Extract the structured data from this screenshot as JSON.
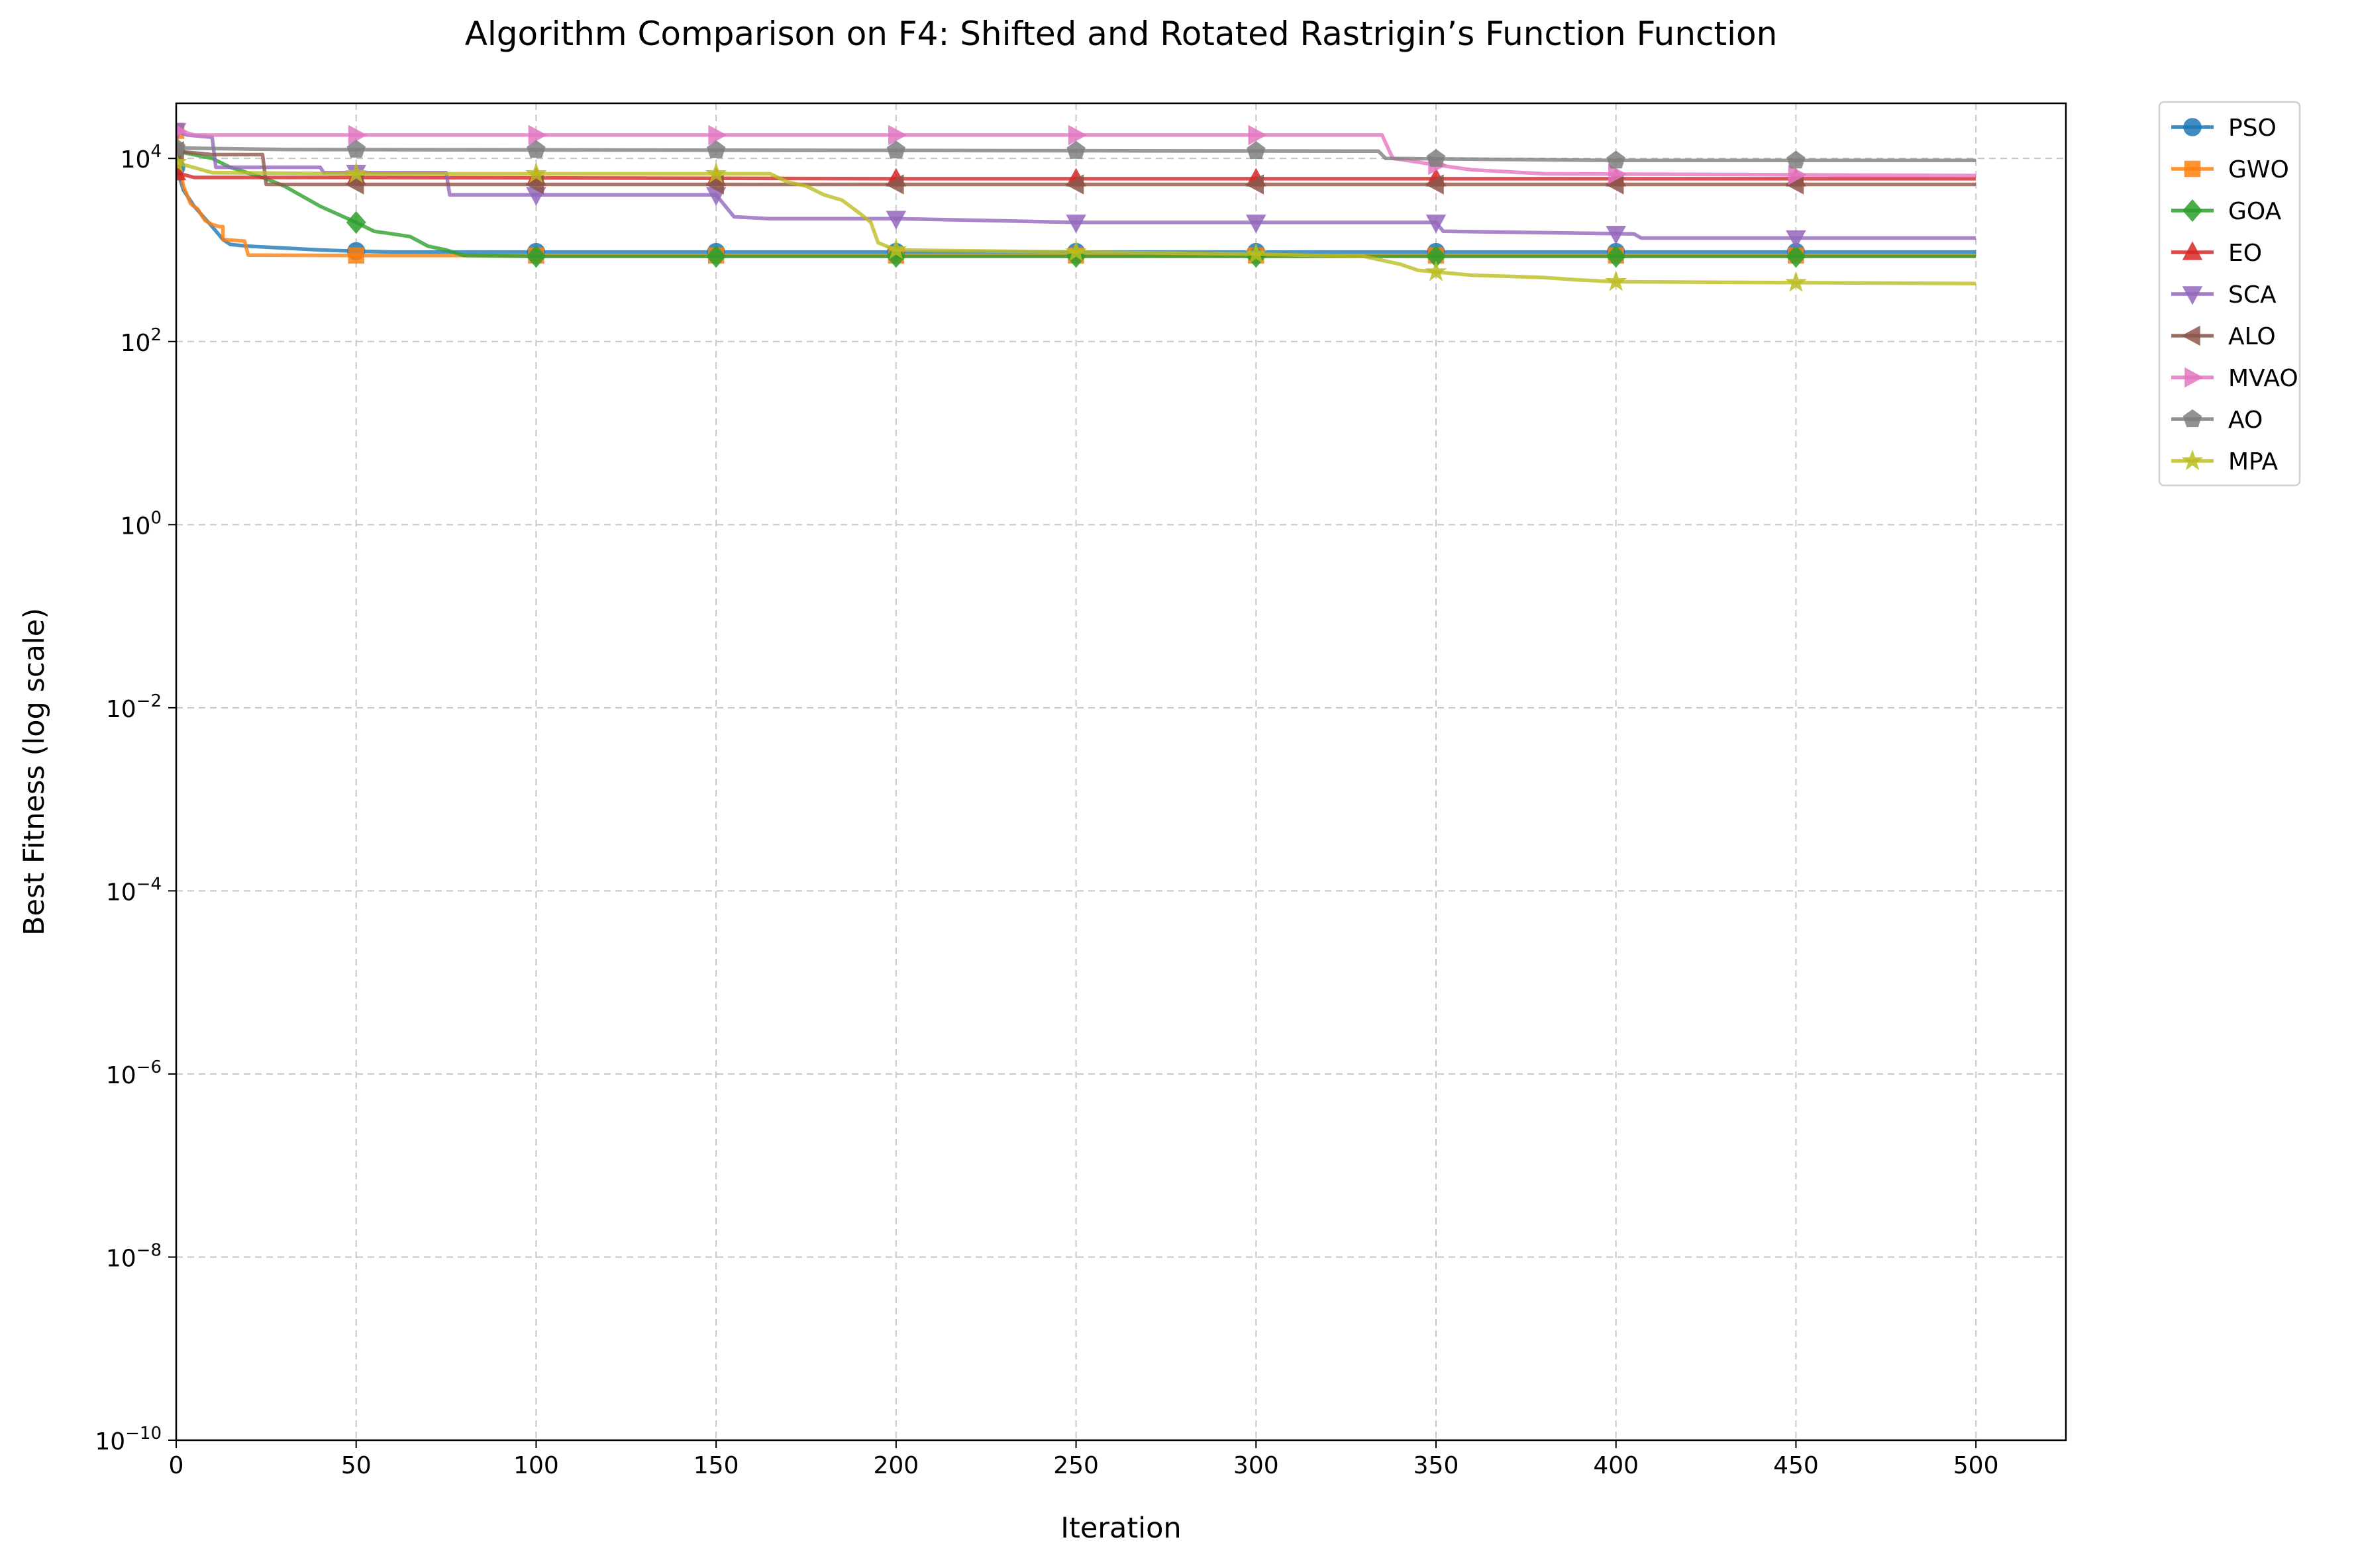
{
  "chart_data": {
    "type": "line",
    "title": "Algorithm Comparison on F4: Shifted and Rotated Rastrigin’s Function Function",
    "xlabel": "Iteration",
    "ylabel": "Best Fitness (log scale)",
    "xlim": [
      0,
      525
    ],
    "ylim": [
      1e-10,
      40000
    ],
    "yscale": "log",
    "grid": true,
    "legend_position": "outside-top-right",
    "x_ticks": [
      0,
      50,
      100,
      150,
      200,
      250,
      300,
      350,
      400,
      450,
      500
    ],
    "y_ticks": [
      {
        "base": "10",
        "exp": "−10",
        "value": 1e-10
      },
      {
        "base": "10",
        "exp": "−8",
        "value": 1e-08
      },
      {
        "base": "10",
        "exp": "−6",
        "value": 1e-06
      },
      {
        "base": "10",
        "exp": "−4",
        "value": 0.0001
      },
      {
        "base": "10",
        "exp": "−2",
        "value": 0.01
      },
      {
        "base": "10",
        "exp": "0",
        "value": 1
      },
      {
        "base": "10",
        "exp": "2",
        "value": 100
      },
      {
        "base": "10",
        "exp": "4",
        "value": 10000
      }
    ],
    "marker_x": [
      0,
      50,
      100,
      150,
      200,
      250,
      300,
      350,
      400,
      450
    ],
    "series": [
      {
        "name": "PSO",
        "color": "#1f77b4",
        "marker": "circle",
        "points": [
          [
            0,
            8000
          ],
          [
            2,
            4500
          ],
          [
            5,
            3000
          ],
          [
            8,
            2200
          ],
          [
            10,
            1800
          ],
          [
            13,
            1300
          ],
          [
            15,
            1150
          ],
          [
            20,
            1100
          ],
          [
            30,
            1050
          ],
          [
            40,
            1000
          ],
          [
            50,
            970
          ],
          [
            60,
            950
          ],
          [
            100,
            950
          ],
          [
            500,
            950
          ]
        ]
      },
      {
        "name": "GWO",
        "color": "#ff7f0e",
        "marker": "square",
        "points": [
          [
            0,
            20000
          ],
          [
            1,
            8000
          ],
          [
            2,
            5000
          ],
          [
            4,
            3200
          ],
          [
            6,
            2800
          ],
          [
            8,
            2100
          ],
          [
            10,
            1900
          ],
          [
            12,
            1800
          ],
          [
            13,
            1800
          ],
          [
            13,
            1300
          ],
          [
            19,
            1250
          ],
          [
            20,
            880
          ],
          [
            50,
            870
          ],
          [
            100,
            870
          ],
          [
            500,
            870
          ]
        ]
      },
      {
        "name": "GOA",
        "color": "#2ca02c",
        "marker": "diamond",
        "points": [
          [
            0,
            12000
          ],
          [
            10,
            10000
          ],
          [
            15,
            8000
          ],
          [
            25,
            6000
          ],
          [
            30,
            5000
          ],
          [
            40,
            3000
          ],
          [
            50,
            2000
          ],
          [
            55,
            1600
          ],
          [
            60,
            1500
          ],
          [
            65,
            1400
          ],
          [
            70,
            1100
          ],
          [
            75,
            1000
          ],
          [
            80,
            870
          ],
          [
            100,
            850
          ],
          [
            200,
            850
          ],
          [
            500,
            850
          ]
        ]
      },
      {
        "name": "EO",
        "color": "#d62728",
        "marker": "triangle-up",
        "points": [
          [
            0,
            7000
          ],
          [
            3,
            6500
          ],
          [
            5,
            6200
          ],
          [
            50,
            6200
          ],
          [
            200,
            6000
          ],
          [
            500,
            6000
          ]
        ]
      },
      {
        "name": "SCA",
        "color": "#9467bd",
        "marker": "triangle-down",
        "points": [
          [
            0,
            20000
          ],
          [
            3,
            18000
          ],
          [
            10,
            17000
          ],
          [
            11,
            8000
          ],
          [
            40,
            8000
          ],
          [
            41,
            7000
          ],
          [
            75,
            7000
          ],
          [
            76,
            4000
          ],
          [
            150,
            4000
          ],
          [
            155,
            2300
          ],
          [
            165,
            2200
          ],
          [
            200,
            2200
          ],
          [
            250,
            2000
          ],
          [
            350,
            2000
          ],
          [
            352,
            1600
          ],
          [
            405,
            1500
          ],
          [
            407,
            1350
          ],
          [
            500,
            1350
          ]
        ]
      },
      {
        "name": "ALO",
        "color": "#8c564b",
        "marker": "triangle-left",
        "points": [
          [
            0,
            12000
          ],
          [
            10,
            11000
          ],
          [
            24,
            11000
          ],
          [
            25,
            5200
          ],
          [
            100,
            5200
          ],
          [
            500,
            5200
          ]
        ]
      },
      {
        "name": "MVAO",
        "color": "#e377c2",
        "marker": "triangle-right",
        "points": [
          [
            0,
            20000
          ],
          [
            3,
            19000
          ],
          [
            5,
            18000
          ],
          [
            335,
            18000
          ],
          [
            338,
            10000
          ],
          [
            350,
            8500
          ],
          [
            360,
            7500
          ],
          [
            380,
            6800
          ],
          [
            500,
            6500
          ]
        ]
      },
      {
        "name": "AO",
        "color": "#7f7f7f",
        "marker": "pentagon",
        "points": [
          [
            0,
            13000
          ],
          [
            30,
            12500
          ],
          [
            334,
            12000
          ],
          [
            336,
            10000
          ],
          [
            400,
            9500
          ],
          [
            500,
            9500
          ]
        ]
      },
      {
        "name": "MPA",
        "color": "#bcbd22",
        "marker": "star",
        "points": [
          [
            0,
            9000
          ],
          [
            10,
            7000
          ],
          [
            50,
            6800
          ],
          [
            165,
            6800
          ],
          [
            170,
            5500
          ],
          [
            175,
            5000
          ],
          [
            180,
            4000
          ],
          [
            185,
            3500
          ],
          [
            190,
            2500
          ],
          [
            193,
            2000
          ],
          [
            195,
            1200
          ],
          [
            200,
            1000
          ],
          [
            250,
            950
          ],
          [
            300,
            900
          ],
          [
            330,
            850
          ],
          [
            340,
            700
          ],
          [
            345,
            600
          ],
          [
            360,
            530
          ],
          [
            380,
            500
          ],
          [
            390,
            470
          ],
          [
            400,
            450
          ],
          [
            500,
            430
          ]
        ]
      }
    ]
  }
}
